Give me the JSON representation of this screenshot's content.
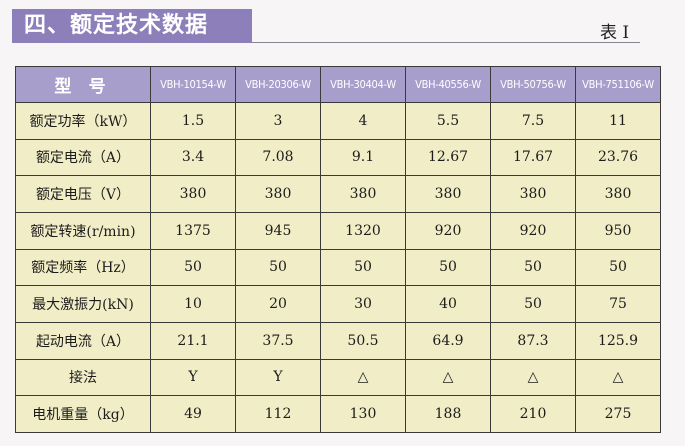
{
  "title": "四、额定技术数据",
  "table_no": "表 I",
  "table": {
    "header": [
      "型 号",
      "VBH-10154-W",
      "VBH-20306-W",
      "VBH-30404-W",
      "VBH-40556-W",
      "VBH-50756-W",
      "VBH-751106-W"
    ],
    "rows": [
      [
        "额定功率（kW）",
        "1.5",
        "3",
        "4",
        "5.5",
        "7.5",
        "11"
      ],
      [
        "额定电流（A）",
        "3.4",
        "7.08",
        "9.1",
        "12.67",
        "17.67",
        "23.76"
      ],
      [
        "额定电压（V）",
        "380",
        "380",
        "380",
        "380",
        "380",
        "380"
      ],
      [
        "额定转速(r/min)",
        "1375",
        "945",
        "1320",
        "920",
        "920",
        "950"
      ],
      [
        "额定频率（Hz）",
        "50",
        "50",
        "50",
        "50",
        "50",
        "50"
      ],
      [
        "最大激振力(kN)",
        "10",
        "20",
        "30",
        "40",
        "50",
        "75"
      ],
      [
        "起动电流（A）",
        "21.1",
        "37.5",
        "50.5",
        "64.9",
        "87.3",
        "125.9"
      ],
      [
        "接法",
        "Y",
        "Y",
        "△",
        "△",
        "△",
        "△"
      ],
      [
        "电机重量（kg）",
        "49",
        "112",
        "130",
        "188",
        "210",
        "275"
      ]
    ]
  }
}
